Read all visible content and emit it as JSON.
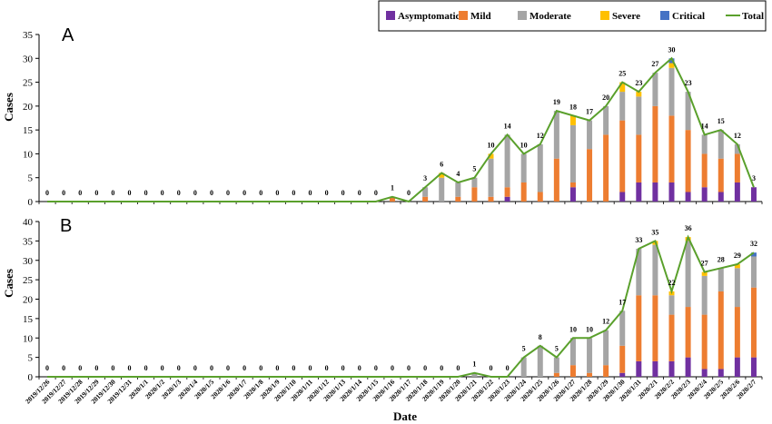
{
  "chart_data": {
    "type": "bar",
    "stacked": true,
    "xlabel": "Date",
    "ylabel": "Cases",
    "legend": {
      "placement": "top-right",
      "entries": [
        "Asymptomatic",
        "Mild",
        "Moderate",
        "Severe",
        "Critical",
        "Total"
      ]
    },
    "colors": {
      "Asymptomatic": "#7030a0",
      "Mild": "#ed7d31",
      "Moderate": "#a5a5a5",
      "Severe": "#ffc000",
      "Critical": "#4472c4",
      "Total": "#5aa02c"
    },
    "categories": [
      "2019/12/26",
      "2019/12/27",
      "2019/12/28",
      "2019/12/29",
      "2019/12/30",
      "2019/12/31",
      "2020/1/1",
      "2020/1/2",
      "2020/1/3",
      "2020/1/4",
      "2020/1/5",
      "2020/1/6",
      "2020/1/7",
      "2020/1/8",
      "2020/1/9",
      "2020/1/10",
      "2020/1/11",
      "2020/1/12",
      "2020/1/13",
      "2020/1/14",
      "2020/1/15",
      "2020/1/16",
      "2020/1/17",
      "2020/1/18",
      "2020/1/19",
      "2020/1/20",
      "2020/1/21",
      "2020/1/22",
      "2020/1/23",
      "2020/1/24",
      "2020/1/25",
      "2020/1/26",
      "2020/1/27",
      "2020/1/28",
      "2020/1/29",
      "2020/1/30",
      "2020/1/31",
      "2020/2/1",
      "2020/2/2",
      "2020/2/3",
      "2020/2/4",
      "2020/2/5",
      "2020/2/6",
      "2020/2/7"
    ],
    "panels": [
      {
        "panel_label": "A",
        "ylim": [
          0,
          35
        ],
        "yticks": [
          0,
          5,
          10,
          15,
          20,
          25,
          30,
          35
        ],
        "total_labels": [
          "0",
          "0",
          "0",
          "0",
          "0",
          "0",
          "0",
          "0",
          "0",
          "0",
          "0",
          "0",
          "0",
          "0",
          "0",
          "0",
          "0",
          "0",
          "0",
          "0",
          "0",
          "1",
          "0",
          "3",
          "6",
          "4",
          "5",
          "10",
          "14",
          "10",
          "12",
          "19",
          "18",
          "17",
          "20",
          "25",
          "23",
          "27",
          "30",
          "23",
          "14",
          "15",
          "12",
          "3"
        ],
        "series": [
          {
            "name": "Asymptomatic",
            "values": [
              0,
              0,
              0,
              0,
              0,
              0,
              0,
              0,
              0,
              0,
              0,
              0,
              0,
              0,
              0,
              0,
              0,
              0,
              0,
              0,
              0,
              0,
              0,
              0,
              0,
              0,
              0,
              0,
              1,
              0,
              0,
              0,
              3,
              0,
              0,
              2,
              4,
              4,
              4,
              2,
              3,
              2,
              4,
              3
            ]
          },
          {
            "name": "Mild",
            "values": [
              0,
              0,
              0,
              0,
              0,
              0,
              0,
              0,
              0,
              0,
              0,
              0,
              0,
              0,
              0,
              0,
              0,
              0,
              0,
              0,
              0,
              1,
              0,
              1,
              0,
              1,
              3,
              1,
              2,
              4,
              2,
              9,
              1,
              11,
              14,
              15,
              10,
              16,
              14,
              13,
              7,
              7,
              6,
              0
            ]
          },
          {
            "name": "Moderate",
            "values": [
              0,
              0,
              0,
              0,
              0,
              0,
              0,
              0,
              0,
              0,
              0,
              0,
              0,
              0,
              0,
              0,
              0,
              0,
              0,
              0,
              0,
              0,
              0,
              2,
              5,
              3,
              2,
              8,
              11,
              6,
              10,
              10,
              12,
              6,
              6,
              6,
              8,
              7,
              10,
              8,
              4,
              6,
              2,
              0
            ]
          },
          {
            "name": "Severe",
            "values": [
              0,
              0,
              0,
              0,
              0,
              0,
              0,
              0,
              0,
              0,
              0,
              0,
              0,
              0,
              0,
              0,
              0,
              0,
              0,
              0,
              0,
              0,
              0,
              0,
              1,
              0,
              0,
              1,
              0,
              0,
              0,
              0,
              2,
              0,
              0,
              2,
              1,
              0,
              1,
              0,
              0,
              0,
              0,
              0
            ]
          },
          {
            "name": "Critical",
            "values": [
              0,
              0,
              0,
              0,
              0,
              0,
              0,
              0,
              0,
              0,
              0,
              0,
              0,
              0,
              0,
              0,
              0,
              0,
              0,
              0,
              0,
              0,
              0,
              0,
              0,
              0,
              0,
              0,
              0,
              0,
              0,
              0,
              0,
              0,
              0,
              0,
              0,
              0,
              1,
              0,
              0,
              0,
              0,
              0
            ]
          }
        ],
        "total": [
          0,
          0,
          0,
          0,
          0,
          0,
          0,
          0,
          0,
          0,
          0,
          0,
          0,
          0,
          0,
          0,
          0,
          0,
          0,
          0,
          0,
          1,
          0,
          3,
          6,
          4,
          5,
          10,
          14,
          10,
          12,
          19,
          18,
          17,
          20,
          25,
          23,
          27,
          30,
          23,
          14,
          15,
          12,
          3
        ]
      },
      {
        "panel_label": "B",
        "ylim": [
          0,
          40
        ],
        "yticks": [
          0,
          5,
          10,
          15,
          20,
          25,
          30,
          35,
          40
        ],
        "total_labels": [
          "0",
          "0",
          "0",
          "0",
          "0",
          "0",
          "0",
          "0",
          "0",
          "0",
          "0",
          "0",
          "0",
          "0",
          "0",
          "0",
          "0",
          "0",
          "0",
          "0",
          "0",
          "0",
          "0",
          "0",
          "0",
          "0",
          "1",
          "0",
          "0",
          "5",
          "8",
          "5",
          "10",
          "10",
          "12",
          "17",
          "33",
          "35",
          "22",
          "36",
          "27",
          "28",
          "29",
          "32"
        ],
        "series": [
          {
            "name": "Asymptomatic",
            "values": [
              0,
              0,
              0,
              0,
              0,
              0,
              0,
              0,
              0,
              0,
              0,
              0,
              0,
              0,
              0,
              0,
              0,
              0,
              0,
              0,
              0,
              0,
              0,
              0,
              0,
              0,
              0,
              0,
              0,
              0,
              0,
              0,
              0,
              0,
              0,
              1,
              4,
              4,
              4,
              5,
              2,
              2,
              5,
              5
            ]
          },
          {
            "name": "Mild",
            "values": [
              0,
              0,
              0,
              0,
              0,
              0,
              0,
              0,
              0,
              0,
              0,
              0,
              0,
              0,
              0,
              0,
              0,
              0,
              0,
              0,
              0,
              0,
              0,
              0,
              0,
              0,
              0,
              0,
              0,
              0,
              0,
              1,
              3,
              1,
              3,
              7,
              17,
              17,
              12,
              13,
              14,
              20,
              13,
              18
            ]
          },
          {
            "name": "Moderate",
            "values": [
              0,
              0,
              0,
              0,
              0,
              0,
              0,
              0,
              0,
              0,
              0,
              0,
              0,
              0,
              0,
              0,
              0,
              0,
              0,
              0,
              0,
              0,
              0,
              0,
              0,
              0,
              1,
              0,
              0,
              5,
              8,
              4,
              7,
              9,
              9,
              9,
              12,
              13,
              5,
              17,
              10,
              6,
              10,
              8
            ]
          },
          {
            "name": "Severe",
            "values": [
              0,
              0,
              0,
              0,
              0,
              0,
              0,
              0,
              0,
              0,
              0,
              0,
              0,
              0,
              0,
              0,
              0,
              0,
              0,
              0,
              0,
              0,
              0,
              0,
              0,
              0,
              0,
              0,
              0,
              0,
              0,
              0,
              0,
              0,
              0,
              0,
              0,
              1,
              1,
              1,
              1,
              0,
              1,
              0
            ]
          },
          {
            "name": "Critical",
            "values": [
              0,
              0,
              0,
              0,
              0,
              0,
              0,
              0,
              0,
              0,
              0,
              0,
              0,
              0,
              0,
              0,
              0,
              0,
              0,
              0,
              0,
              0,
              0,
              0,
              0,
              0,
              0,
              0,
              0,
              0,
              0,
              0,
              0,
              0,
              0,
              0,
              0,
              0,
              0,
              0,
              0,
              0,
              0,
              1
            ]
          }
        ],
        "total": [
          0,
          0,
          0,
          0,
          0,
          0,
          0,
          0,
          0,
          0,
          0,
          0,
          0,
          0,
          0,
          0,
          0,
          0,
          0,
          0,
          0,
          0,
          0,
          0,
          0,
          0,
          1,
          0,
          0,
          5,
          8,
          5,
          10,
          10,
          12,
          17,
          33,
          35,
          22,
          36,
          27,
          28,
          29,
          32
        ]
      }
    ]
  }
}
